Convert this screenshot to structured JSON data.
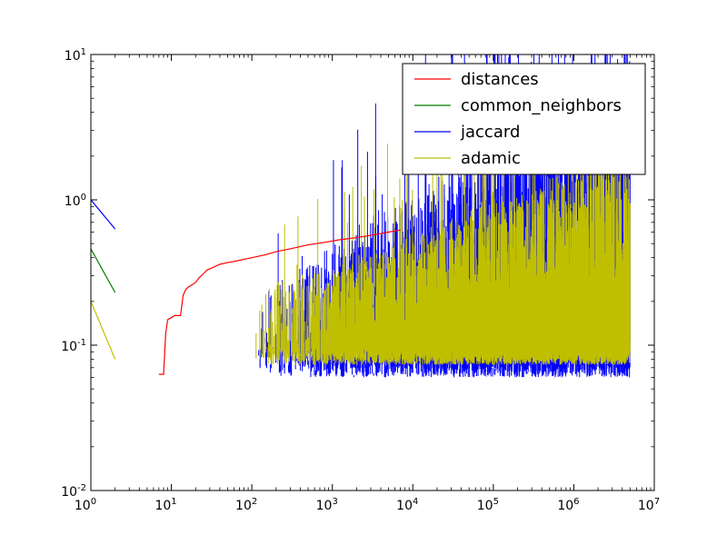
{
  "chart_data": {
    "type": "line",
    "title": "",
    "xlabel": "",
    "ylabel": "",
    "xscale": "log",
    "yscale": "log",
    "xlim": [
      1,
      10000000
    ],
    "ylim": [
      0.01,
      10
    ],
    "grid": false,
    "legend_position": "top-right",
    "x_ticks": [
      {
        "base": "10",
        "exp": "0",
        "value": 1
      },
      {
        "base": "10",
        "exp": "1",
        "value": 10
      },
      {
        "base": "10",
        "exp": "2",
        "value": 100
      },
      {
        "base": "10",
        "exp": "3",
        "value": 1000
      },
      {
        "base": "10",
        "exp": "4",
        "value": 10000
      },
      {
        "base": "10",
        "exp": "5",
        "value": 100000
      },
      {
        "base": "10",
        "exp": "6",
        "value": 1000000
      },
      {
        "base": "10",
        "exp": "7",
        "value": 10000000
      }
    ],
    "y_ticks": [
      {
        "base": "10",
        "exp": "-2",
        "value": 0.01
      },
      {
        "base": "10",
        "exp": "-1",
        "value": 0.1
      },
      {
        "base": "10",
        "exp": "0",
        "value": 1
      },
      {
        "base": "10",
        "exp": "1",
        "value": 10
      }
    ],
    "series": [
      {
        "name": "distances",
        "color": "#ff0000",
        "x": [
          7,
          8,
          8.5,
          9,
          10,
          11,
          12,
          13,
          14,
          15,
          16,
          18,
          20,
          22,
          25,
          28,
          32,
          40,
          50,
          65,
          80,
          100,
          150,
          200,
          300,
          500,
          800,
          1200,
          2000,
          3000,
          5000,
          7000
        ],
        "y": [
          0.063,
          0.063,
          0.12,
          0.15,
          0.155,
          0.16,
          0.16,
          0.16,
          0.22,
          0.24,
          0.25,
          0.26,
          0.27,
          0.29,
          0.31,
          0.33,
          0.34,
          0.36,
          0.37,
          0.38,
          0.39,
          0.4,
          0.42,
          0.44,
          0.46,
          0.49,
          0.51,
          0.53,
          0.55,
          0.57,
          0.6,
          0.62
        ]
      },
      {
        "name": "common_neighbors",
        "color": "#008000",
        "x": [
          1,
          2
        ],
        "y": [
          0.46,
          0.23
        ]
      },
      {
        "name": "jaccard",
        "color": "#0000ff",
        "x": [
          1,
          2
        ],
        "y": [
          1.0,
          0.63
        ],
        "noisy_region": {
          "x_start": 100,
          "x_end": 5000000,
          "y_min": 0.05,
          "y_max": 10
        }
      },
      {
        "name": "adamic",
        "color": "#bfbf00",
        "x": [
          1,
          2
        ],
        "y": [
          0.2,
          0.08
        ],
        "noisy_region": {
          "x_start": 100,
          "x_end": 5000000,
          "y_min": 0.07,
          "y_max": 3
        }
      }
    ]
  }
}
